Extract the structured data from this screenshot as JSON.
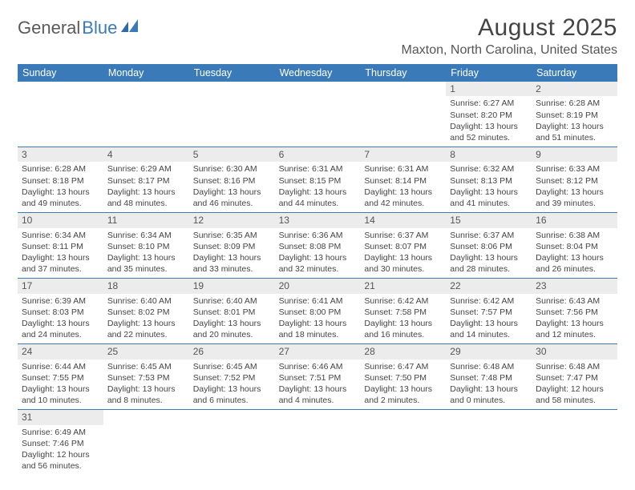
{
  "logo": {
    "text1": "General",
    "text2": "Blue"
  },
  "header": {
    "month_title": "August 2025",
    "location": "Maxton, North Carolina, United States"
  },
  "colors": {
    "header_bg": "#3a7ab8",
    "daynum_bg": "#ececec",
    "row_border": "#3a7ab8",
    "text_dark": "#444444",
    "text_mid": "#555555"
  },
  "days_of_week": [
    "Sunday",
    "Monday",
    "Tuesday",
    "Wednesday",
    "Thursday",
    "Friday",
    "Saturday"
  ],
  "weeks": [
    [
      null,
      null,
      null,
      null,
      null,
      {
        "n": "1",
        "sr": "6:27 AM",
        "ss": "8:20 PM",
        "dh": "13",
        "dm": "52"
      },
      {
        "n": "2",
        "sr": "6:28 AM",
        "ss": "8:19 PM",
        "dh": "13",
        "dm": "51"
      }
    ],
    [
      {
        "n": "3",
        "sr": "6:28 AM",
        "ss": "8:18 PM",
        "dh": "13",
        "dm": "49"
      },
      {
        "n": "4",
        "sr": "6:29 AM",
        "ss": "8:17 PM",
        "dh": "13",
        "dm": "48"
      },
      {
        "n": "5",
        "sr": "6:30 AM",
        "ss": "8:16 PM",
        "dh": "13",
        "dm": "46"
      },
      {
        "n": "6",
        "sr": "6:31 AM",
        "ss": "8:15 PM",
        "dh": "13",
        "dm": "44"
      },
      {
        "n": "7",
        "sr": "6:31 AM",
        "ss": "8:14 PM",
        "dh": "13",
        "dm": "42"
      },
      {
        "n": "8",
        "sr": "6:32 AM",
        "ss": "8:13 PM",
        "dh": "13",
        "dm": "41"
      },
      {
        "n": "9",
        "sr": "6:33 AM",
        "ss": "8:12 PM",
        "dh": "13",
        "dm": "39"
      }
    ],
    [
      {
        "n": "10",
        "sr": "6:34 AM",
        "ss": "8:11 PM",
        "dh": "13",
        "dm": "37"
      },
      {
        "n": "11",
        "sr": "6:34 AM",
        "ss": "8:10 PM",
        "dh": "13",
        "dm": "35"
      },
      {
        "n": "12",
        "sr": "6:35 AM",
        "ss": "8:09 PM",
        "dh": "13",
        "dm": "33"
      },
      {
        "n": "13",
        "sr": "6:36 AM",
        "ss": "8:08 PM",
        "dh": "13",
        "dm": "32"
      },
      {
        "n": "14",
        "sr": "6:37 AM",
        "ss": "8:07 PM",
        "dh": "13",
        "dm": "30"
      },
      {
        "n": "15",
        "sr": "6:37 AM",
        "ss": "8:06 PM",
        "dh": "13",
        "dm": "28"
      },
      {
        "n": "16",
        "sr": "6:38 AM",
        "ss": "8:04 PM",
        "dh": "13",
        "dm": "26"
      }
    ],
    [
      {
        "n": "17",
        "sr": "6:39 AM",
        "ss": "8:03 PM",
        "dh": "13",
        "dm": "24"
      },
      {
        "n": "18",
        "sr": "6:40 AM",
        "ss": "8:02 PM",
        "dh": "13",
        "dm": "22"
      },
      {
        "n": "19",
        "sr": "6:40 AM",
        "ss": "8:01 PM",
        "dh": "13",
        "dm": "20"
      },
      {
        "n": "20",
        "sr": "6:41 AM",
        "ss": "8:00 PM",
        "dh": "13",
        "dm": "18"
      },
      {
        "n": "21",
        "sr": "6:42 AM",
        "ss": "7:58 PM",
        "dh": "13",
        "dm": "16"
      },
      {
        "n": "22",
        "sr": "6:42 AM",
        "ss": "7:57 PM",
        "dh": "13",
        "dm": "14"
      },
      {
        "n": "23",
        "sr": "6:43 AM",
        "ss": "7:56 PM",
        "dh": "13",
        "dm": "12"
      }
    ],
    [
      {
        "n": "24",
        "sr": "6:44 AM",
        "ss": "7:55 PM",
        "dh": "13",
        "dm": "10"
      },
      {
        "n": "25",
        "sr": "6:45 AM",
        "ss": "7:53 PM",
        "dh": "13",
        "dm": "8"
      },
      {
        "n": "26",
        "sr": "6:45 AM",
        "ss": "7:52 PM",
        "dh": "13",
        "dm": "6"
      },
      {
        "n": "27",
        "sr": "6:46 AM",
        "ss": "7:51 PM",
        "dh": "13",
        "dm": "4"
      },
      {
        "n": "28",
        "sr": "6:47 AM",
        "ss": "7:50 PM",
        "dh": "13",
        "dm": "2"
      },
      {
        "n": "29",
        "sr": "6:48 AM",
        "ss": "7:48 PM",
        "dh": "13",
        "dm": "0"
      },
      {
        "n": "30",
        "sr": "6:48 AM",
        "ss": "7:47 PM",
        "dh": "12",
        "dm": "58"
      }
    ],
    [
      {
        "n": "31",
        "sr": "6:49 AM",
        "ss": "7:46 PM",
        "dh": "12",
        "dm": "56"
      },
      null,
      null,
      null,
      null,
      null,
      null
    ]
  ]
}
